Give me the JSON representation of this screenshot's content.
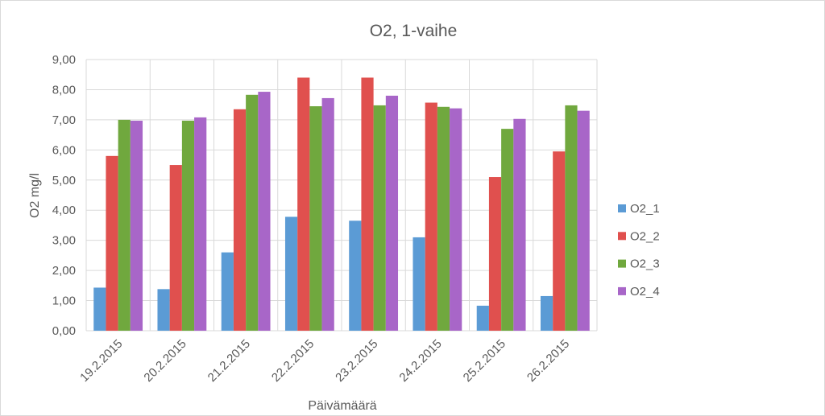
{
  "chart_data": {
    "type": "bar",
    "title": "O2, 1-vaihe",
    "xlabel": "Päivämäärä",
    "ylabel": "O2 mg/l",
    "ylim": [
      0,
      9
    ],
    "ytick_labels": [
      "0,00",
      "1,00",
      "2,00",
      "3,00",
      "4,00",
      "5,00",
      "6,00",
      "7,00",
      "8,00",
      "9,00"
    ],
    "categories": [
      "19.2.2015",
      "20.2.2015",
      "21.2.2015",
      "22.2.2015",
      "23.2.2015",
      "24.2.2015",
      "25.2.2015",
      "26.2.2015"
    ],
    "series": [
      {
        "name": "O2_1",
        "color": "#5b9bd5",
        "values": [
          1.43,
          1.38,
          2.6,
          3.78,
          3.65,
          3.1,
          0.83,
          1.15
        ]
      },
      {
        "name": "O2_2",
        "color": "#e0504e",
        "values": [
          5.8,
          5.5,
          7.35,
          8.4,
          8.4,
          7.57,
          5.1,
          5.95
        ]
      },
      {
        "name": "O2_3",
        "color": "#70a83e",
        "values": [
          7.0,
          6.97,
          7.83,
          7.45,
          7.48,
          7.43,
          6.7,
          7.48
        ]
      },
      {
        "name": "O2_4",
        "color": "#a866c8",
        "values": [
          6.97,
          7.08,
          7.93,
          7.72,
          7.8,
          7.38,
          7.03,
          7.3
        ]
      }
    ],
    "grid": true,
    "legend": "right"
  }
}
